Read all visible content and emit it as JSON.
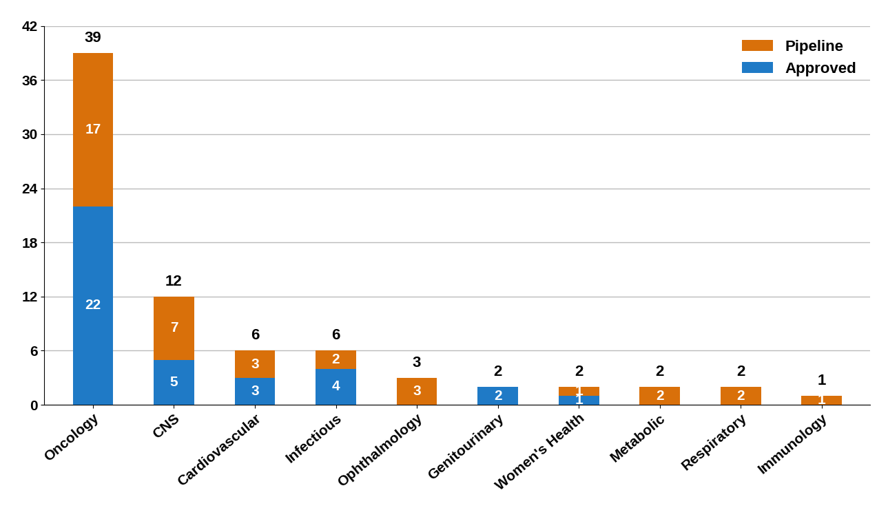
{
  "chart_data": {
    "type": "bar",
    "stacked": true,
    "data_labels": true,
    "grid": true,
    "legend": "upper right",
    "categories": [
      "Oncology",
      "CNS",
      "Cardiovascular",
      "Infectious",
      "Ophthalmology",
      "Genitourinary",
      "Women's Health",
      "Metabolic",
      "Respiratory",
      "Immunology"
    ],
    "series": [
      {
        "name": "Approved",
        "color": "#1f7ac6",
        "values": [
          22,
          5,
          3,
          4,
          null,
          2,
          1,
          null,
          null,
          null
        ]
      },
      {
        "name": "Pipeline",
        "color": "#d9700a",
        "values": [
          17,
          7,
          3,
          2,
          3,
          null,
          1,
          2,
          2,
          1
        ]
      }
    ],
    "totals": [
      39,
      12,
      6,
      6,
      3,
      2,
      2,
      2,
      2,
      1
    ],
    "ylim": [
      0,
      42
    ],
    "yticks": [
      0,
      6,
      12,
      18,
      24,
      30,
      36,
      42
    ]
  }
}
